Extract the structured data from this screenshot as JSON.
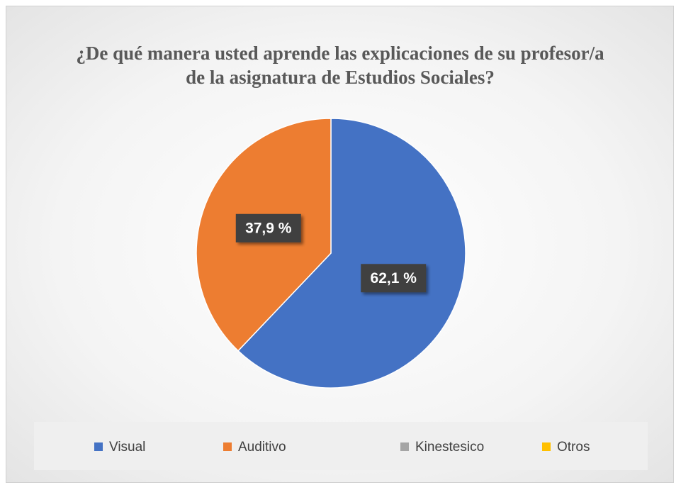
{
  "chart_data": {
    "type": "pie",
    "title": "¿De qué manera usted aprende las explicaciones de su profesor/a de la asignatura de Estudios Sociales?",
    "categories": [
      "Visual",
      "Auditivo",
      "Kinestesico",
      "Otros"
    ],
    "values": [
      62.1,
      37.9,
      0,
      0
    ],
    "value_labels": [
      "62,1 %",
      "37,9 %",
      null,
      null
    ],
    "colors": [
      "#4472c4",
      "#ed7d31",
      "#a5a5a5",
      "#ffc000"
    ],
    "legend": "bottom"
  }
}
